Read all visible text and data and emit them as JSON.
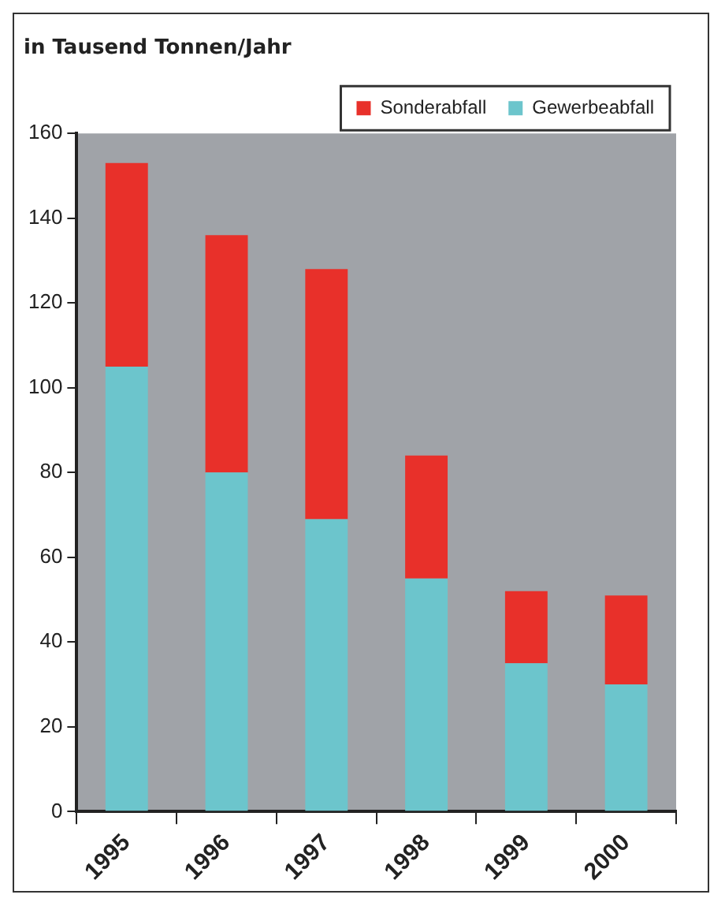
{
  "chart_data": {
    "type": "bar",
    "ylabel": "in Tausend Tonnen/Jahr",
    "categories": [
      "1995",
      "1996",
      "1997",
      "1998",
      "1999",
      "2000"
    ],
    "stacked": true,
    "series": [
      {
        "name": "Gewerbeabfall",
        "color": "#6cc5cc",
        "values": [
          105,
          80,
          69,
          55,
          35,
          30
        ]
      },
      {
        "name": "Sonderabfall",
        "color": "#e8302a",
        "values": [
          48,
          56,
          59,
          29,
          17,
          21
        ]
      }
    ],
    "ylim": [
      0,
      160
    ],
    "yticks": [
      0,
      20,
      40,
      60,
      80,
      100,
      120,
      140,
      160
    ],
    "grid": false,
    "legend": "top right"
  }
}
